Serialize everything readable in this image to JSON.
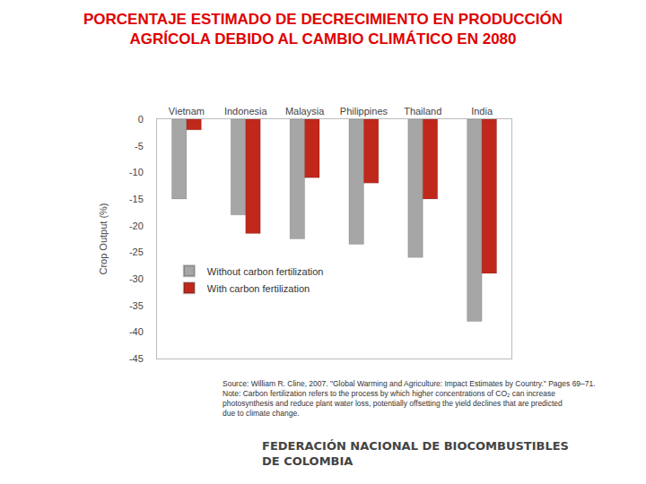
{
  "chart_data": {
    "type": "bar",
    "title": [
      "PORCENTAJE ESTIMADO DE DECRECIMIENTO EN PRODUCCIÓN",
      "AGRÍCOLA DEBIDO AL CAMBIO CLIMÁTICO EN 2080"
    ],
    "y_label": "Crop Output (%)",
    "categories": [
      "Vietnam",
      "Indonesia",
      "Malaysia",
      "Philippines",
      "Thailand",
      "India"
    ],
    "series": [
      {
        "name": "Without carbon fertilization",
        "color": "#a6a6a6",
        "values": [
          -15,
          -18,
          -22.5,
          -23.5,
          -26,
          -38
        ]
      },
      {
        "name": "With carbon fertilization",
        "color": "#c0281c",
        "values": [
          -2,
          -21.5,
          -11,
          -12,
          -15,
          -29
        ]
      }
    ],
    "ylim": [
      -45,
      0
    ],
    "yticks": [
      0,
      -5,
      -10,
      -15,
      -20,
      -25,
      -30,
      -35,
      -40,
      -45
    ],
    "grid": false,
    "legend": "left",
    "data_labels": false,
    "notes": [
      "Source: William R. Cline, 2007. \"Global Warming and Agriculture: Impact Estimates by Country.\" Pages 69–71.",
      "Note: Carbon fertilization refers to the process by which higher concentrations of CO₂ can increase",
      "photosynthesis and reduce plant water loss, potentially offsetting the yield declines that are predicted",
      "due to climate change."
    ],
    "footer": [
      "FEDERACIÓN NACIONAL DE BIOCOMBUSTIBLES",
      "DE COLOMBIA"
    ]
  }
}
